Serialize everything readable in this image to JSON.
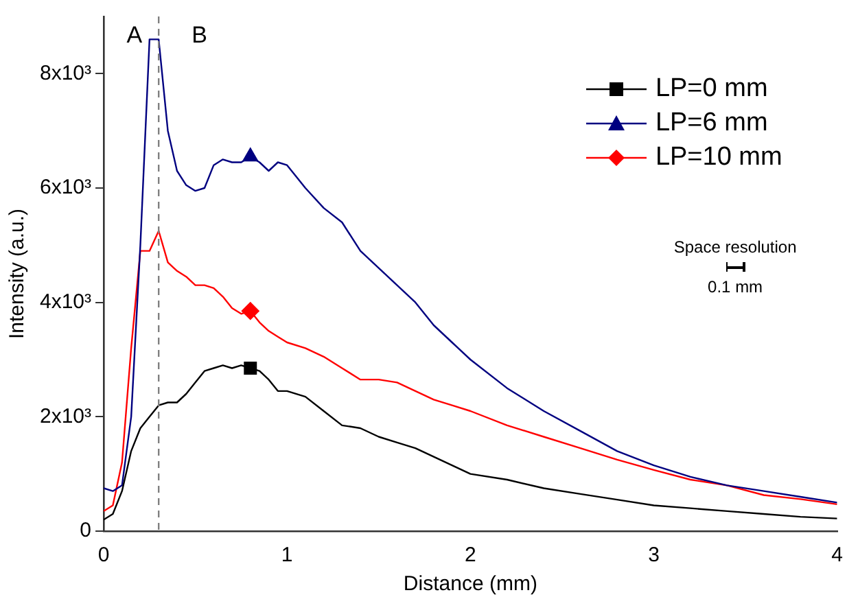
{
  "chart_data": {
    "type": "line",
    "xlabel": "Distance (mm)",
    "ylabel": "Intensity (a.u.)",
    "x": [
      0,
      0.05,
      0.1,
      0.15,
      0.2,
      0.25,
      0.3,
      0.35,
      0.4,
      0.45,
      0.5,
      0.55,
      0.6,
      0.65,
      0.7,
      0.75,
      0.8,
      0.85,
      0.9,
      0.95,
      1.0,
      1.1,
      1.2,
      1.3,
      1.4,
      1.5,
      1.6,
      1.7,
      1.8,
      1.9,
      2.0,
      2.2,
      2.4,
      2.6,
      2.8,
      3.0,
      3.2,
      3.4,
      3.6,
      3.8,
      4.0
    ],
    "series": [
      {
        "name": "LP=0 mm",
        "color": "#000000",
        "values": [
          200,
          300,
          700,
          1400,
          1800,
          2000,
          2200,
          2250,
          2250,
          2400,
          2600,
          2800,
          2850,
          2900,
          2850,
          2900,
          2850,
          2800,
          2650,
          2450,
          2450,
          2350,
          2100,
          1850,
          1800,
          1650,
          1550,
          1450,
          1300,
          1150,
          1000,
          900,
          750,
          650,
          550,
          450,
          400,
          350,
          300,
          250,
          220
        ]
      },
      {
        "name": "LP=6 mm",
        "color": "#000080",
        "values": [
          750,
          700,
          800,
          2000,
          5000,
          8600,
          8600,
          7000,
          6300,
          6050,
          5950,
          6000,
          6400,
          6500,
          6450,
          6450,
          6550,
          6450,
          6300,
          6450,
          6400,
          6000,
          5650,
          5400,
          4900,
          4600,
          4300,
          4000,
          3600,
          3300,
          3000,
          2500,
          2100,
          1750,
          1400,
          1150,
          950,
          800,
          700,
          600,
          500
        ]
      },
      {
        "name": "LP=10 mm",
        "color": "#ff0000",
        "values": [
          350,
          450,
          1200,
          3200,
          4900,
          4900,
          5250,
          4700,
          4550,
          4450,
          4300,
          4300,
          4250,
          4100,
          3900,
          3800,
          3850,
          3650,
          3500,
          3400,
          3300,
          3200,
          3050,
          2850,
          2650,
          2650,
          2600,
          2450,
          2300,
          2200,
          2100,
          1850,
          1650,
          1450,
          1250,
          1070,
          900,
          800,
          630,
          560,
          470
        ]
      },
      {
        "type": "scatter",
        "color": "#000000",
        "marker": "square",
        "values": [
          null,
          null,
          null,
          null,
          null,
          null,
          null,
          null,
          null,
          null,
          null,
          null,
          null,
          null,
          null,
          null,
          2850,
          null,
          null,
          null,
          null,
          null,
          null,
          null,
          null,
          null,
          null,
          null,
          null,
          null,
          null,
          null,
          null,
          null,
          null,
          null,
          null,
          null,
          null,
          null,
          null
        ]
      },
      {
        "type": "scatter",
        "color": "#000080",
        "marker": "triangle",
        "values": [
          null,
          null,
          null,
          null,
          null,
          null,
          null,
          null,
          null,
          null,
          null,
          null,
          null,
          null,
          null,
          null,
          6550,
          null,
          null,
          null,
          null,
          null,
          null,
          null,
          null,
          null,
          null,
          null,
          null,
          null,
          null,
          null,
          null,
          null,
          null,
          null,
          null,
          null,
          null,
          null,
          null
        ]
      },
      {
        "type": "scatter",
        "color": "#ff0000",
        "marker": "diamond",
        "values": [
          null,
          null,
          null,
          null,
          null,
          null,
          null,
          null,
          null,
          null,
          null,
          null,
          null,
          null,
          null,
          null,
          3850,
          null,
          null,
          null,
          null,
          null,
          null,
          null,
          null,
          null,
          null,
          null,
          null,
          null,
          null,
          null,
          null,
          null,
          null,
          null,
          null,
          null,
          null,
          null,
          null
        ]
      }
    ],
    "xlim": [
      0,
      4
    ],
    "xticks": [
      0,
      1,
      2,
      3,
      4
    ],
    "ylim": [
      0,
      9000
    ],
    "yticks": [
      0,
      {
        "value": 2000,
        "label": "2x10³"
      },
      {
        "value": 4000,
        "label": "4x10³"
      },
      {
        "value": 6000,
        "label": "6x10³"
      },
      {
        "value": 8000,
        "label": "8x10³"
      }
    ],
    "ref_lines": [
      {
        "axis": "x",
        "value": 0.3,
        "color": "#808080",
        "line_style": "dashed"
      }
    ],
    "annotations": [
      "A",
      "B",
      "Space resolution",
      "0.1 mm"
    ],
    "grid": false,
    "legend": "top right",
    "line_style": "solid"
  }
}
